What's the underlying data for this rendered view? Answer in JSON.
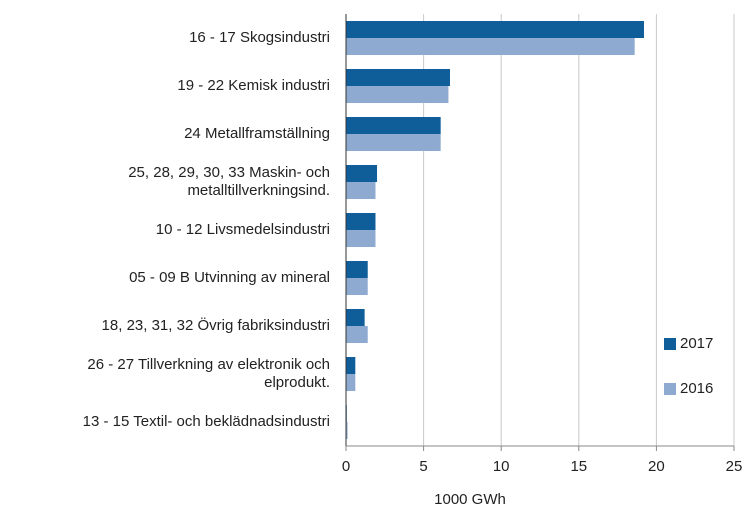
{
  "chart_data": {
    "type": "barh",
    "categories": [
      "16 - 17 Skogsindustri",
      "19 - 22 Kemisk industri",
      "24 Metallframställning",
      "25, 28, 29, 30, 33 Maskin- och\nmetalltillverkningsind.",
      "10 - 12 Livsmedelsindustri",
      "05 - 09 B Utvinning av mineral",
      "18, 23, 31, 32 Övrig fabriksindustri",
      "26 - 27 Tillverkning av elektronik och\nelprodukt.",
      "13 - 15 Textil- och beklädnadsindustri"
    ],
    "series": [
      {
        "name": "2017",
        "color": "#0f5e99",
        "values": [
          19.2,
          6.7,
          6.1,
          2.0,
          1.9,
          1.4,
          1.2,
          0.6,
          0.05
        ]
      },
      {
        "name": "2016",
        "color": "#8eaad0",
        "values": [
          18.6,
          6.6,
          6.1,
          1.9,
          1.9,
          1.4,
          1.4,
          0.6,
          0.1
        ]
      }
    ],
    "xlabel": "1000 GWh",
    "xlim": [
      0,
      25
    ],
    "xticks": [
      0,
      5,
      10,
      15,
      20,
      25
    ],
    "grid": true,
    "legend": "lower right"
  }
}
